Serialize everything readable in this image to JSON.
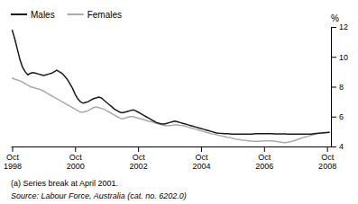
{
  "chart_data": {
    "type": "line",
    "ylabel": "%",
    "annotations": [
      "(a) Series break at April 2001.",
      "Source: Labour Force, Australia (cat. no. 6202.0)"
    ],
    "legend": "upper left",
    "grid": false,
    "ylim": [
      4,
      12
    ],
    "yticks": [
      4,
      6,
      8,
      10,
      12
    ],
    "categories": [
      "Oct\n1998",
      null,
      null,
      null,
      null,
      null,
      null,
      null,
      null,
      null,
      null,
      null,
      null,
      null,
      null,
      null,
      null,
      null,
      null,
      null,
      null,
      null,
      null,
      null,
      "Oct\n2000",
      null,
      null,
      null,
      null,
      null,
      null,
      null,
      null,
      null,
      null,
      null,
      null,
      null,
      null,
      null,
      null,
      null,
      null,
      null,
      null,
      null,
      null,
      null,
      "Oct\n2002",
      null,
      null,
      null,
      null,
      null,
      null,
      null,
      null,
      null,
      null,
      null,
      null,
      null,
      null,
      null,
      null,
      null,
      null,
      null,
      null,
      null,
      null,
      null,
      "Oct\n2004",
      null,
      null,
      null,
      null,
      null,
      null,
      null,
      null,
      null,
      null,
      null,
      null,
      null,
      null,
      null,
      null,
      null,
      null,
      null,
      null,
      null,
      null,
      null,
      "Oct\n2006",
      null,
      null,
      null,
      null,
      null,
      null,
      null,
      null,
      null,
      null,
      null,
      null,
      null,
      null,
      null,
      null,
      null,
      null,
      null,
      null,
      null,
      null,
      null,
      "Oct\n2008",
      null
    ],
    "series": [
      {
        "name": "Males",
        "color": "#1a1a1a",
        "values": [
          11.8,
          11.2,
          10.5,
          9.8,
          9.3,
          9.0,
          8.8,
          8.9,
          8.95,
          8.9,
          8.85,
          8.8,
          8.75,
          8.8,
          8.85,
          8.9,
          9.0,
          9.1,
          9.0,
          8.9,
          8.7,
          8.5,
          8.2,
          7.9,
          7.5,
          7.2,
          7.0,
          6.9,
          6.95,
          7.0,
          7.1,
          7.2,
          7.25,
          7.3,
          7.25,
          7.1,
          6.95,
          6.8,
          6.65,
          6.5,
          6.4,
          6.3,
          6.25,
          6.3,
          6.35,
          6.4,
          6.45,
          6.4,
          6.3,
          6.2,
          6.1,
          6.0,
          5.9,
          5.8,
          5.7,
          5.6,
          5.55,
          5.5,
          5.5,
          5.55,
          5.6,
          5.65,
          5.7,
          5.65,
          5.6,
          5.55,
          5.5,
          5.45,
          5.4,
          5.35,
          5.3,
          5.25,
          5.2,
          5.15,
          5.1,
          5.05,
          5.0,
          4.95,
          4.9,
          4.88,
          4.87,
          4.86,
          4.85,
          4.84,
          4.83,
          4.82,
          4.82,
          4.82,
          4.82,
          4.82,
          4.82,
          4.83,
          4.84,
          4.85,
          4.85,
          4.85,
          4.85,
          4.85,
          4.85,
          4.85,
          4.84,
          4.84,
          4.84,
          4.84,
          4.84,
          4.83,
          4.83,
          4.83,
          4.83,
          4.82,
          4.82,
          4.82,
          4.82,
          4.82,
          4.83,
          4.85,
          4.87,
          4.89,
          4.9,
          4.92,
          4.93,
          4.95
        ]
      },
      {
        "name": "Females",
        "color": "#aaaaaa",
        "values": [
          8.6,
          8.5,
          8.45,
          8.4,
          8.3,
          8.2,
          8.1,
          8.0,
          7.95,
          7.9,
          7.85,
          7.8,
          7.7,
          7.6,
          7.5,
          7.4,
          7.3,
          7.2,
          7.1,
          7.0,
          6.9,
          6.8,
          6.7,
          6.6,
          6.5,
          6.4,
          6.3,
          6.3,
          6.35,
          6.4,
          6.5,
          6.6,
          6.65,
          6.6,
          6.55,
          6.5,
          6.4,
          6.3,
          6.2,
          6.1,
          6.0,
          5.9,
          5.85,
          5.9,
          5.95,
          6.0,
          6.0,
          5.95,
          5.9,
          5.85,
          5.8,
          5.75,
          5.7,
          5.65,
          5.6,
          5.55,
          5.5,
          5.45,
          5.4,
          5.4,
          5.4,
          5.42,
          5.45,
          5.45,
          5.42,
          5.4,
          5.35,
          5.3,
          5.25,
          5.2,
          5.15,
          5.1,
          5.05,
          5.0,
          4.95,
          4.9,
          4.85,
          4.82,
          4.78,
          4.74,
          4.7,
          4.66,
          4.62,
          4.6,
          4.55,
          4.5,
          4.48,
          4.45,
          4.42,
          4.4,
          4.38,
          4.36,
          4.35,
          4.35,
          4.35,
          4.36,
          4.37,
          4.38,
          4.38,
          4.37,
          4.35,
          4.33,
          4.3,
          4.27,
          4.25,
          4.28,
          4.32,
          4.36,
          4.42,
          4.48,
          4.54,
          4.6,
          4.65,
          4.7,
          4.75,
          4.8,
          4.85,
          4.9,
          4.92,
          4.94,
          4.95,
          4.97
        ]
      }
    ]
  }
}
